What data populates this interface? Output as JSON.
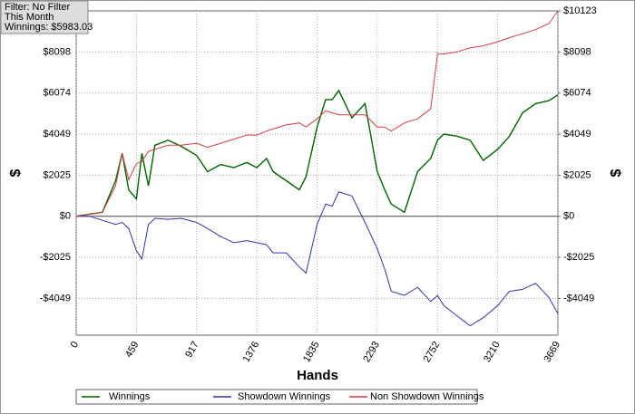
{
  "chart_data": {
    "type": "line",
    "annotations": [
      "Filter: No Filter",
      "This Month",
      "Winnings: $5983.03"
    ],
    "xlabel": "Hands",
    "ylabel": "$",
    "y2label": "$",
    "x": [
      0,
      100,
      200,
      300,
      350,
      400,
      459,
      500,
      550,
      600,
      700,
      800,
      917,
      1000,
      1100,
      1200,
      1300,
      1376,
      1450,
      1500,
      1600,
      1700,
      1750,
      1835,
      1900,
      1950,
      2000,
      2100,
      2200,
      2293,
      2350,
      2400,
      2500,
      2600,
      2700,
      2752,
      2800,
      2900,
      3000,
      3100,
      3210,
      3300,
      3400,
      3500,
      3600,
      3669
    ],
    "series": [
      {
        "name": "Winnings",
        "color": "#006400",
        "values": [
          0,
          100,
          200,
          1750,
          3100,
          1300,
          850,
          3100,
          1500,
          3500,
          3750,
          3450,
          3000,
          2200,
          2550,
          2400,
          2650,
          2400,
          2850,
          2200,
          1750,
          1300,
          1950,
          4400,
          5750,
          5750,
          6200,
          4850,
          5550,
          2200,
          1300,
          600,
          200,
          2200,
          2850,
          3750,
          4050,
          3950,
          3750,
          2750,
          3300,
          3950,
          5100,
          5550,
          5700,
          5983
        ]
      },
      {
        "name": "Showdown Winnings",
        "color": "#3333aa",
        "values": [
          0,
          0,
          -200,
          -400,
          -300,
          -600,
          -1700,
          -2100,
          -400,
          -100,
          -150,
          -100,
          -300,
          -600,
          -1000,
          -1300,
          -1200,
          -1300,
          -1400,
          -1800,
          -1800,
          -2500,
          -2800,
          -400,
          600,
          500,
          1200,
          1000,
          -300,
          -1600,
          -2600,
          -3700,
          -3900,
          -3500,
          -4200,
          -3900,
          -4400,
          -4900,
          -5400,
          -5000,
          -4400,
          -3700,
          -3600,
          -3300,
          -4000,
          -4800
        ]
      },
      {
        "name": "Non Showdown Winnings",
        "color": "#d04040",
        "values": [
          0,
          100,
          200,
          1500,
          3100,
          1800,
          2600,
          2700,
          3200,
          3300,
          3500,
          3500,
          3600,
          3400,
          3600,
          3800,
          4000,
          4000,
          4200,
          4300,
          4500,
          4600,
          4400,
          4800,
          5200,
          5100,
          5000,
          5000,
          5000,
          4400,
          4400,
          4200,
          4600,
          4800,
          5300,
          8000,
          8000,
          8100,
          8300,
          8400,
          8600,
          8800,
          9000,
          9200,
          9500,
          10123
        ]
      }
    ],
    "xlim": [
      0,
      3669
    ],
    "xticks": [
      0,
      459,
      917,
      1376,
      1835,
      2293,
      2752,
      3210,
      3669
    ],
    "ylim": [
      -5860,
      10123
    ],
    "yticks": [
      {
        "value": -4049,
        "label": "-$4049"
      },
      {
        "value": -2025,
        "label": "-$2025"
      },
      {
        "value": 0,
        "label": "$0"
      },
      {
        "value": 2025,
        "label": "$2025"
      },
      {
        "value": 4049,
        "label": "$4049"
      },
      {
        "value": 6074,
        "label": "$6074"
      },
      {
        "value": 8098,
        "label": "$8098"
      }
    ],
    "y2lim": [
      -5860,
      10123
    ],
    "y2ticks": [
      {
        "value": -4049,
        "label": "-$4049"
      },
      {
        "value": -2025,
        "label": "-$2025"
      },
      {
        "value": 0,
        "label": "$0"
      },
      {
        "value": 2025,
        "label": "$2025"
      },
      {
        "value": 4049,
        "label": "$4049"
      },
      {
        "value": 6074,
        "label": "$6074"
      },
      {
        "value": 8098,
        "label": "$8098"
      },
      {
        "value": 10123,
        "label": "$10123"
      }
    ],
    "grid": true
  }
}
